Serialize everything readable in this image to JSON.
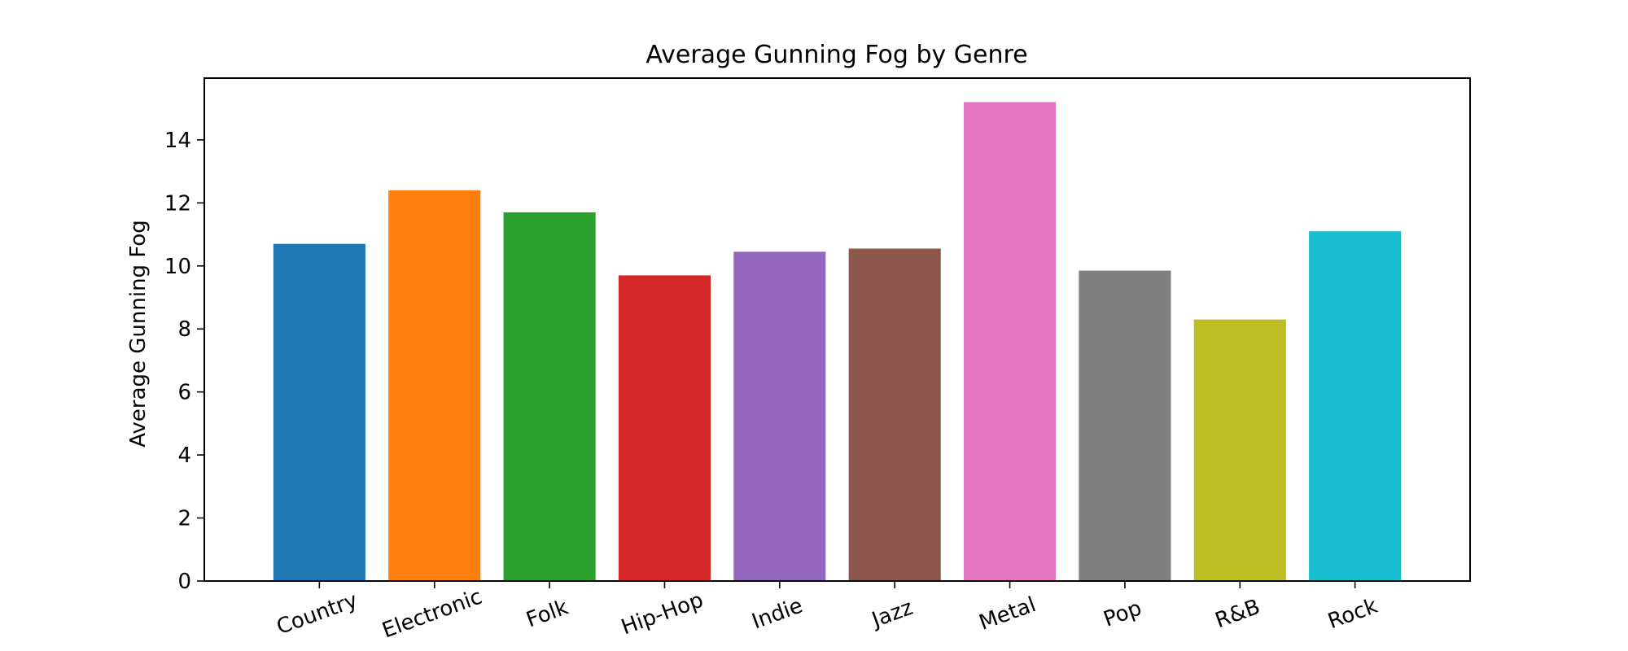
{
  "chart_data": {
    "type": "bar",
    "title": "Average Gunning Fog by Genre",
    "xlabel": "",
    "ylabel": "Average Gunning Fog",
    "categories": [
      "Country",
      "Electronic",
      "Folk",
      "Hip-Hop",
      "Indie",
      "Jazz",
      "Metal",
      "Pop",
      "R&B",
      "Rock"
    ],
    "values": [
      10.7,
      12.4,
      11.7,
      9.7,
      10.45,
      10.55,
      15.2,
      9.85,
      8.3,
      11.1
    ],
    "colors": [
      "#1f77b4",
      "#ff7f0e",
      "#2ca02c",
      "#d62728",
      "#9467bd",
      "#8c564b",
      "#e377c2",
      "#7f7f7f",
      "#bcbd22",
      "#17becf"
    ],
    "yticks": [
      0,
      2,
      4,
      6,
      8,
      10,
      12,
      14
    ],
    "ylim": [
      0,
      15.96
    ],
    "grid": false,
    "legend": "none"
  }
}
